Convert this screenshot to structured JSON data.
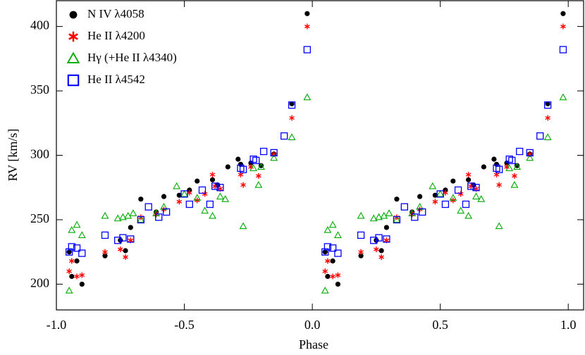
{
  "chart_data": {
    "type": "scatter",
    "xlabel": "Phase",
    "ylabel": "RV [km/s]",
    "xlim": [
      -1.0,
      1.06
    ],
    "ylim": [
      180,
      420
    ],
    "xticks": [
      {
        "value": -1.0,
        "label": "-1.0"
      },
      -0.5,
      {
        "value": 0.0,
        "label": "0.0"
      },
      0.5,
      {
        "value": 1.0,
        "label": "1.0"
      }
    ],
    "yticks": [
      200,
      250,
      300,
      350,
      400
    ],
    "legend": "upper left",
    "series": [
      {
        "name": "N IV λ4058",
        "color": "#000000",
        "marker": "circle",
        "x": [
          -0.95,
          -0.94,
          -0.92,
          -0.9,
          -0.81,
          -0.75,
          -0.73,
          -0.71,
          -0.67,
          -0.61,
          -0.58,
          -0.52,
          -0.48,
          -0.45,
          -0.39,
          -0.37,
          -0.33,
          -0.29,
          -0.28,
          -0.24,
          -0.2,
          -0.15,
          -0.08,
          -0.02,
          0.05,
          0.06,
          0.08,
          0.1,
          0.19,
          0.25,
          0.27,
          0.29,
          0.33,
          0.39,
          0.42,
          0.48,
          0.52,
          0.55,
          0.61,
          0.63,
          0.67,
          0.71,
          0.72,
          0.76,
          0.8,
          0.85,
          0.92,
          0.98
        ],
        "values": [
          225,
          206,
          218,
          200,
          222,
          234,
          226,
          244,
          266,
          256,
          268,
          269,
          273,
          280,
          281,
          277,
          291,
          297,
          293,
          294,
          292,
          301,
          340,
          410,
          225,
          206,
          218,
          200,
          222,
          234,
          226,
          244,
          266,
          256,
          268,
          269,
          273,
          280,
          281,
          277,
          291,
          297,
          293,
          294,
          292,
          301,
          340,
          410
        ]
      },
      {
        "name": "He II λ4200",
        "color": "#ff0000",
        "marker": "asterisk",
        "x": [
          -0.95,
          -0.94,
          -0.92,
          -0.9,
          -0.81,
          -0.75,
          -0.73,
          -0.71,
          -0.67,
          -0.61,
          -0.58,
          -0.52,
          -0.48,
          -0.45,
          -0.42,
          -0.39,
          -0.38,
          -0.36,
          -0.28,
          -0.27,
          -0.24,
          -0.21,
          -0.15,
          -0.08,
          -0.02,
          0.05,
          0.06,
          0.08,
          0.1,
          0.19,
          0.25,
          0.27,
          0.29,
          0.33,
          0.39,
          0.42,
          0.48,
          0.52,
          0.55,
          0.58,
          0.61,
          0.62,
          0.64,
          0.72,
          0.73,
          0.76,
          0.79,
          0.85,
          0.92,
          0.98
        ],
        "values": [
          210,
          218,
          206,
          207,
          225,
          227,
          221,
          234,
          252,
          254,
          258,
          264,
          271,
          265,
          270,
          285,
          276,
          274,
          285,
          277,
          291,
          284,
          301,
          329,
          400,
          210,
          218,
          206,
          207,
          225,
          227,
          221,
          234,
          252,
          254,
          258,
          264,
          271,
          265,
          270,
          285,
          276,
          274,
          285,
          277,
          291,
          284,
          301,
          329,
          400
        ]
      },
      {
        "name": "Hγ (+He II λ4340)",
        "color": "#00aa00",
        "marker": "triangle",
        "x": [
          -0.95,
          -0.94,
          -0.92,
          -0.9,
          -0.81,
          -0.76,
          -0.74,
          -0.72,
          -0.7,
          -0.67,
          -0.61,
          -0.58,
          -0.53,
          -0.5,
          -0.45,
          -0.42,
          -0.39,
          -0.36,
          -0.34,
          -0.27,
          -0.23,
          -0.21,
          -0.2,
          -0.15,
          -0.08,
          -0.02,
          0.05,
          0.06,
          0.08,
          0.1,
          0.19,
          0.24,
          0.26,
          0.28,
          0.3,
          0.33,
          0.39,
          0.42,
          0.47,
          0.5,
          0.55,
          0.58,
          0.61,
          0.64,
          0.66,
          0.73,
          0.77,
          0.79,
          0.8,
          0.85,
          0.92,
          0.98
        ],
        "values": [
          195,
          242,
          246,
          238,
          253,
          251,
          252,
          253,
          255,
          250,
          255,
          260,
          276,
          270,
          267,
          257,
          253,
          268,
          266,
          245,
          290,
          277,
          291,
          298,
          314,
          345,
          195,
          242,
          246,
          238,
          253,
          251,
          252,
          253,
          255,
          250,
          255,
          260,
          276,
          270,
          267,
          257,
          253,
          268,
          266,
          245,
          290,
          277,
          291,
          298,
          314,
          345
        ]
      },
      {
        "name": "He II λ4542",
        "color": "#0000ff",
        "marker": "square",
        "x": [
          -0.95,
          -0.94,
          -0.92,
          -0.9,
          -0.81,
          -0.76,
          -0.74,
          -0.71,
          -0.67,
          -0.64,
          -0.6,
          -0.57,
          -0.5,
          -0.48,
          -0.43,
          -0.4,
          -0.38,
          -0.36,
          -0.28,
          -0.27,
          -0.23,
          -0.22,
          -0.19,
          -0.15,
          -0.11,
          -0.08,
          -0.02,
          0.05,
          0.06,
          0.08,
          0.1,
          0.19,
          0.24,
          0.26,
          0.29,
          0.33,
          0.36,
          0.4,
          0.43,
          0.5,
          0.52,
          0.57,
          0.6,
          0.62,
          0.64,
          0.72,
          0.73,
          0.77,
          0.78,
          0.81,
          0.85,
          0.89,
          0.92,
          0.98
        ],
        "values": [
          225,
          229,
          228,
          224,
          238,
          234,
          236,
          235,
          250,
          260,
          252,
          256,
          270,
          262,
          273,
          262,
          276,
          275,
          290,
          289,
          297,
          296,
          303,
          302,
          315,
          339,
          382,
          225,
          229,
          228,
          224,
          238,
          234,
          236,
          235,
          250,
          260,
          252,
          256,
          270,
          262,
          273,
          262,
          276,
          275,
          290,
          289,
          297,
          296,
          303,
          302,
          315,
          339,
          382
        ]
      }
    ]
  }
}
